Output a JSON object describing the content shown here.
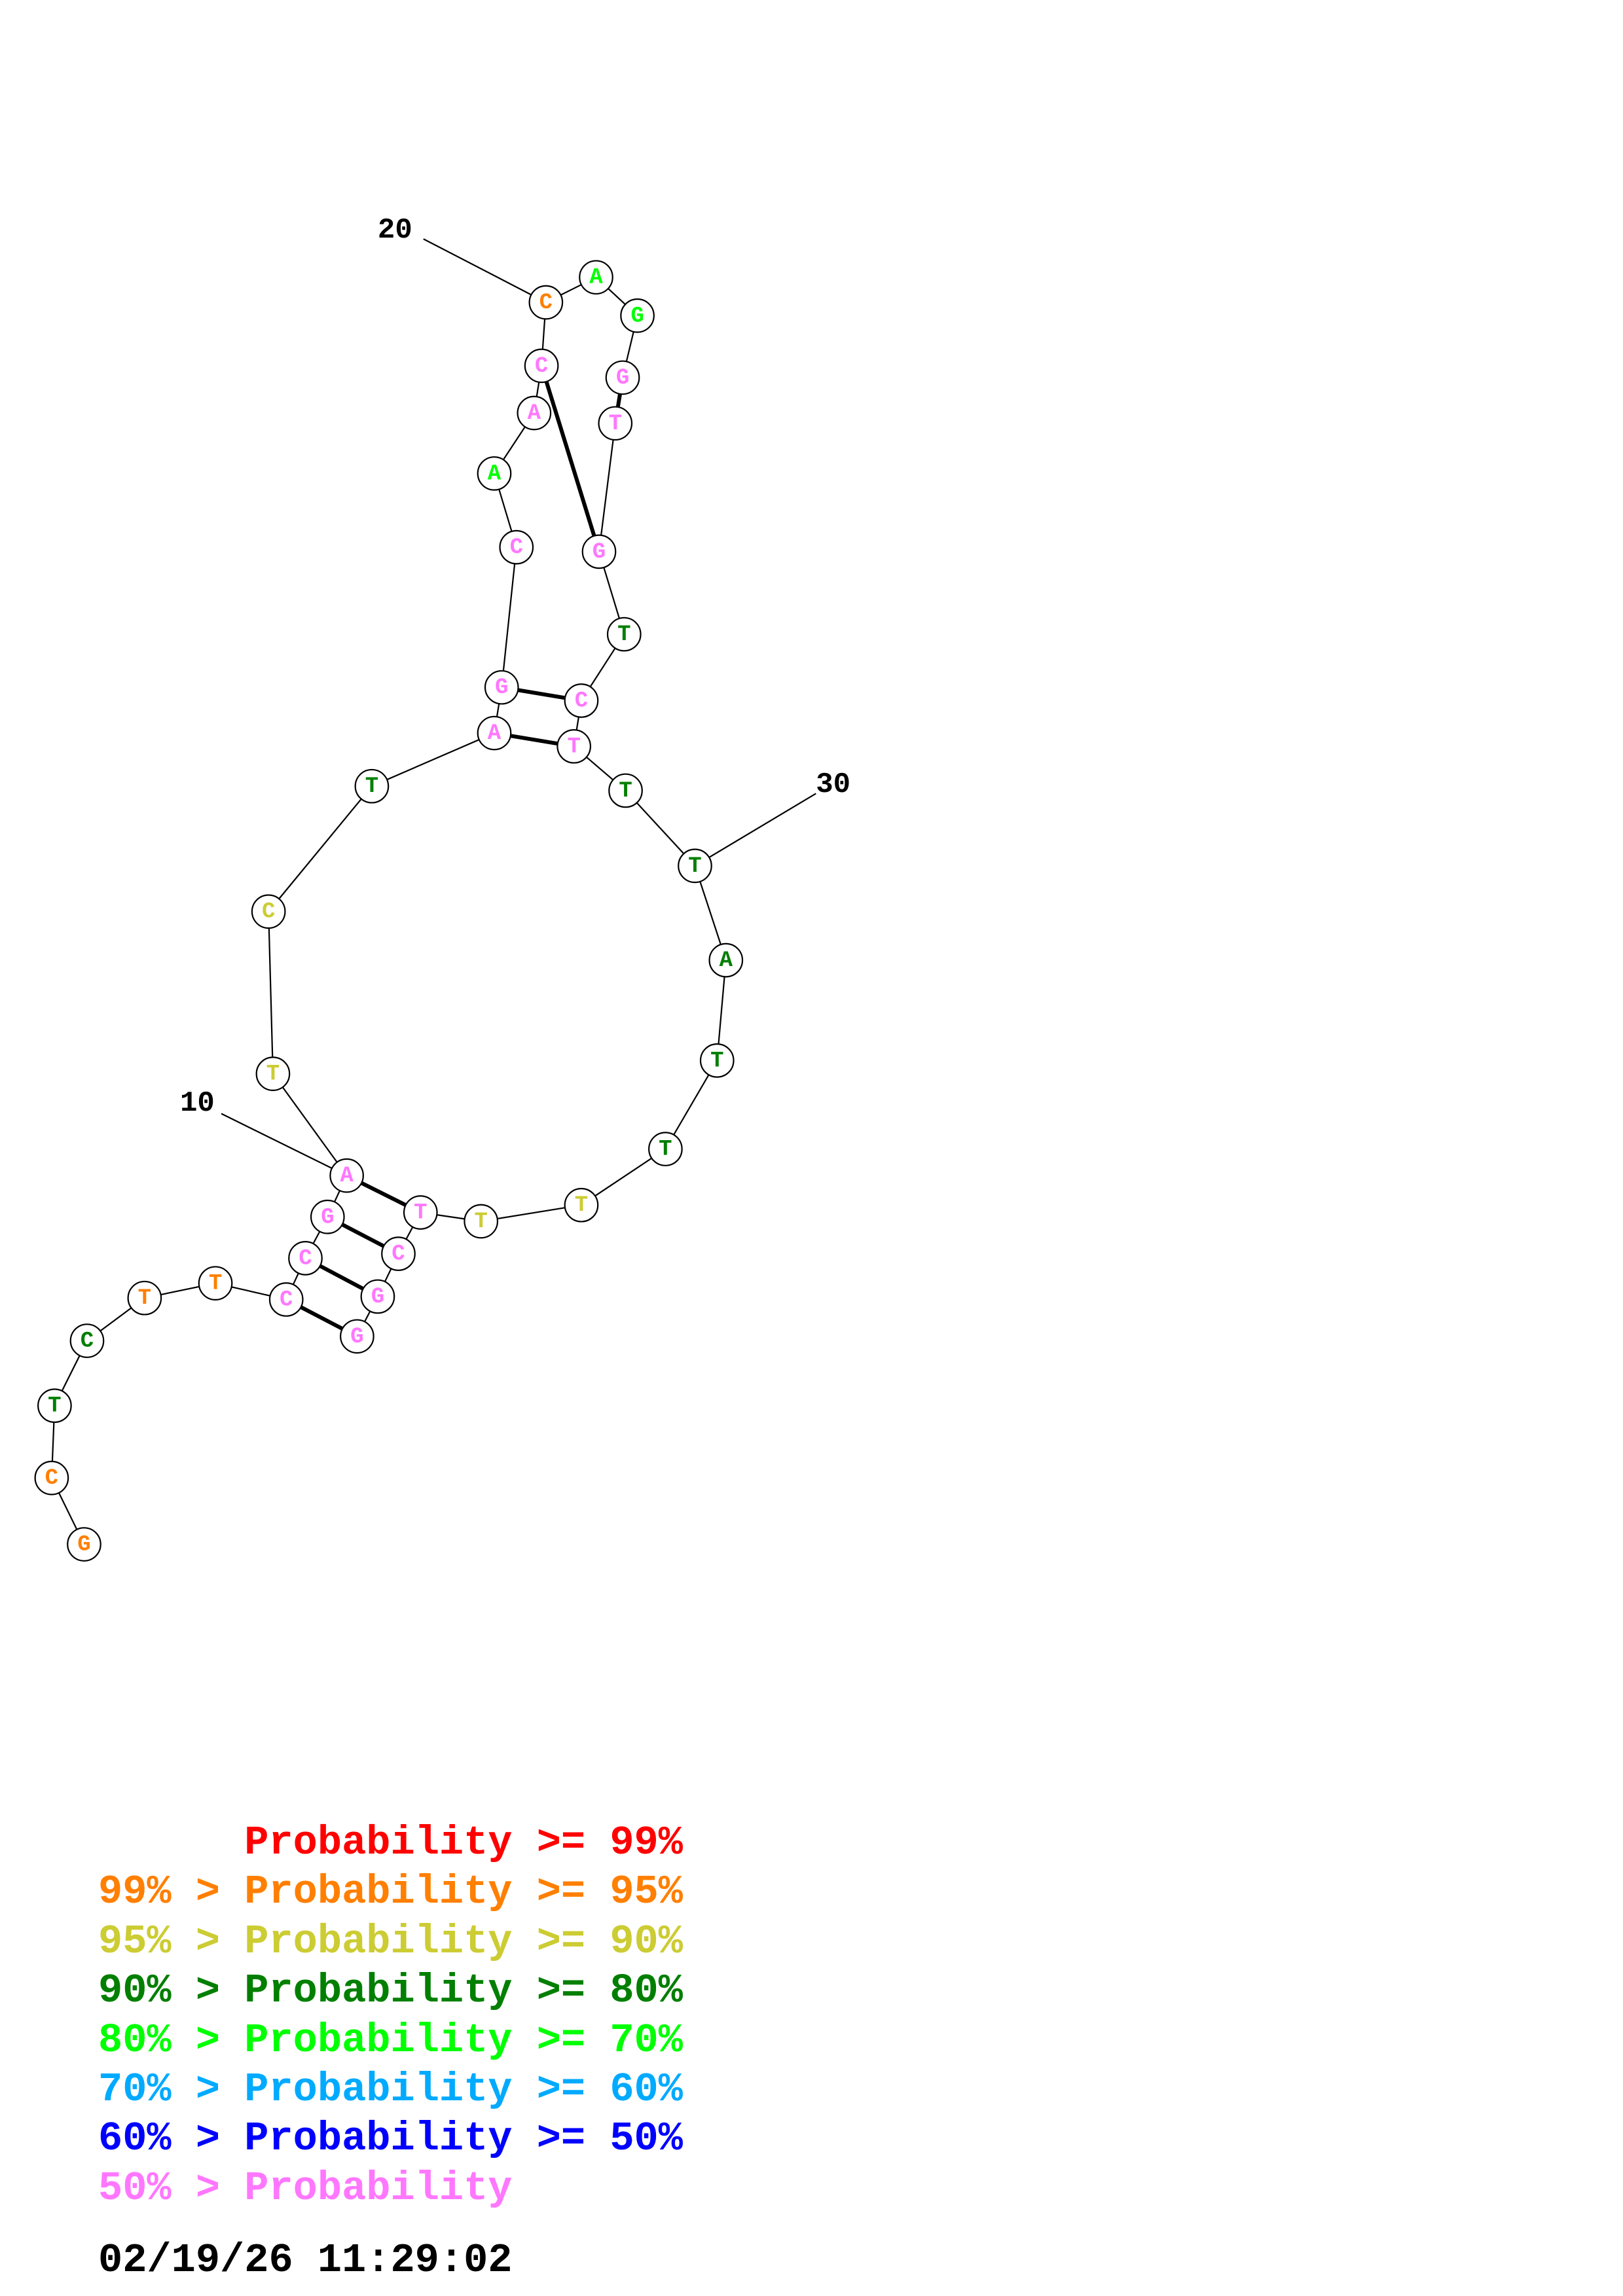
{
  "colors": {
    "ge99": "#ff0000",
    "p95": "#ff7f00",
    "p90": "#cccc33",
    "p80": "#007f00",
    "p70": "#00ff00",
    "p60": "#00aaff",
    "p50": "#0000ff",
    "lt50": "#ff77ff"
  },
  "nucleotides": [
    {
      "base": "G",
      "color": "p95"
    },
    {
      "base": "C",
      "color": "p95"
    },
    {
      "base": "T",
      "color": "p80"
    },
    {
      "base": "C",
      "color": "p80"
    },
    {
      "base": "T",
      "color": "p95"
    },
    {
      "base": "T",
      "color": "p95"
    },
    {
      "base": "C",
      "color": "lt50"
    },
    {
      "base": "C",
      "color": "lt50"
    },
    {
      "base": "G",
      "color": "lt50"
    },
    {
      "base": "A",
      "color": "lt50"
    },
    {
      "base": "T",
      "color": "p90"
    },
    {
      "base": "C",
      "color": "p90"
    },
    {
      "base": "T",
      "color": "p80"
    },
    {
      "base": "A",
      "color": "lt50"
    },
    {
      "base": "G",
      "color": "lt50"
    },
    {
      "base": "C",
      "color": "lt50"
    },
    {
      "base": "A",
      "color": "p70"
    },
    {
      "base": "A",
      "color": "lt50"
    },
    {
      "base": "C",
      "color": "lt50"
    },
    {
      "base": "C",
      "color": "p95"
    },
    {
      "base": "A",
      "color": "p70"
    },
    {
      "base": "G",
      "color": "p70"
    },
    {
      "base": "G",
      "color": "lt50"
    },
    {
      "base": "T",
      "color": "lt50"
    },
    {
      "base": "G",
      "color": "lt50"
    },
    {
      "base": "T",
      "color": "p80"
    },
    {
      "base": "C",
      "color": "lt50"
    },
    {
      "base": "T",
      "color": "lt50"
    },
    {
      "base": "T",
      "color": "p80"
    },
    {
      "base": "T",
      "color": "p80"
    },
    {
      "base": "A",
      "color": "p80"
    },
    {
      "base": "T",
      "color": "p80"
    },
    {
      "base": "T",
      "color": "p80"
    },
    {
      "base": "T",
      "color": "p90"
    },
    {
      "base": "T",
      "color": "p90"
    },
    {
      "base": "T",
      "color": "lt50"
    },
    {
      "base": "C",
      "color": "lt50"
    },
    {
      "base": "G",
      "color": "lt50"
    },
    {
      "base": "G",
      "color": "lt50"
    }
  ],
  "base_pairs": [
    [
      7,
      39
    ],
    [
      8,
      38
    ],
    [
      9,
      37
    ],
    [
      10,
      36
    ],
    [
      14,
      28
    ],
    [
      15,
      27
    ],
    [
      19,
      25
    ],
    [
      23,
      24
    ]
  ],
  "tick_labels": [
    {
      "text": "10",
      "index": 10
    },
    {
      "text": "20",
      "index": 20
    },
    {
      "text": "30",
      "index": 30
    }
  ],
  "legend": [
    {
      "prefix": "    ",
      "label": "Probability >= 99%",
      "color": "ge99"
    },
    {
      "prefix": "99% > ",
      "label": "Probability >= 95%",
      "color": "p95"
    },
    {
      "prefix": "95% > ",
      "label": "Probability >= 90%",
      "color": "p90"
    },
    {
      "prefix": "90% > ",
      "label": "Probability >= 80%",
      "color": "p80"
    },
    {
      "prefix": "80% > ",
      "label": "Probability >= 70%",
      "color": "p70"
    },
    {
      "prefix": "70% > ",
      "label": "Probability >= 60%",
      "color": "p60"
    },
    {
      "prefix": "60% > ",
      "label": "Probability >= 50%",
      "color": "p50"
    },
    {
      "prefix": "50% > ",
      "label": "Probability",
      "color": "lt50"
    }
  ],
  "timestamp": "02/19/26 11:29:02"
}
